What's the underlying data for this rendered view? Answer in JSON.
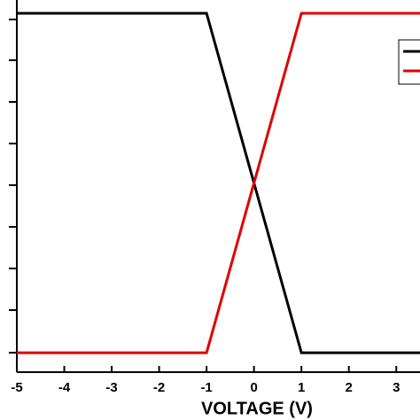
{
  "chart_data": {
    "type": "line",
    "x_label": "VOLTAGE (V)",
    "x": [
      -5,
      -1,
      1,
      3.5
    ],
    "series": [
      {
        "color": "#000000",
        "values": [
          1,
          1,
          0,
          0
        ]
      },
      {
        "color": "#e00000",
        "values": [
          0,
          0,
          1,
          1
        ]
      }
    ],
    "xlim": [
      -5,
      3.5
    ],
    "xticks": [
      -5,
      -4,
      -3,
      -2,
      -1,
      0,
      1,
      2,
      3
    ],
    "ylim": [
      -0.057,
      1.039
    ]
  }
}
